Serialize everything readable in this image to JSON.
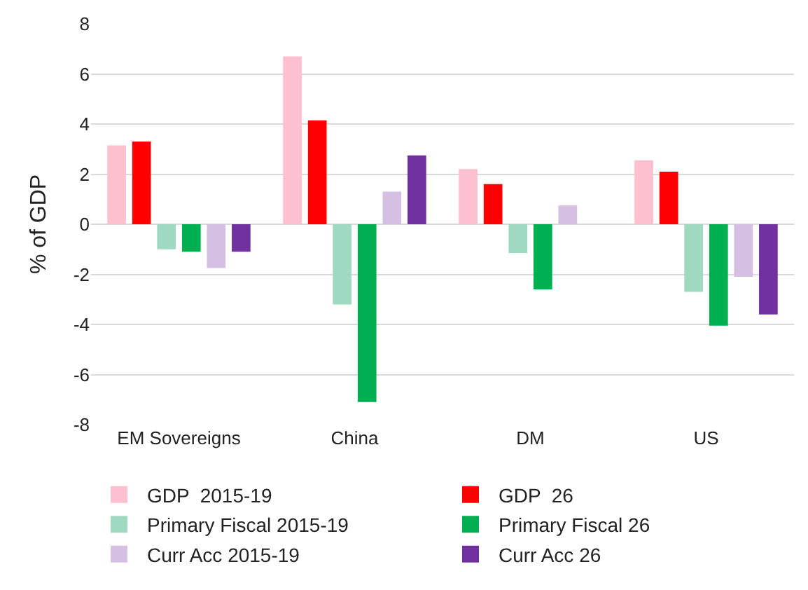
{
  "chart_data": {
    "type": "bar",
    "ylabel": "% of GDP",
    "categories": [
      "EM Sovereigns",
      "China",
      "DM",
      "US"
    ],
    "series": [
      {
        "name": "GDP  2015-19",
        "color": "#fcc0cf",
        "values": [
          3.15,
          6.7,
          2.2,
          2.55
        ]
      },
      {
        "name": "GDP  26",
        "color": "#ff0000",
        "values": [
          3.3,
          4.15,
          1.6,
          2.1
        ]
      },
      {
        "name": "Primary Fiscal 2015-19",
        "color": "#9fd9c0",
        "values": [
          -1.0,
          -3.2,
          -1.15,
          -2.7
        ]
      },
      {
        "name": "Primary Fiscal 26",
        "color": "#00b050",
        "values": [
          -1.1,
          -7.1,
          -2.6,
          -4.05
        ]
      },
      {
        "name": "Curr Acc 2015-19",
        "color": "#d5c0e4",
        "values": [
          -1.75,
          1.3,
          0.75,
          -2.1
        ]
      },
      {
        "name": "Curr Acc 26",
        "color": "#7030a0",
        "values": [
          -1.1,
          2.75,
          null,
          -3.6
        ]
      }
    ],
    "ylim": [
      -8,
      8
    ],
    "yticks": [
      -8,
      -6,
      -4,
      -2,
      0,
      2,
      4,
      6,
      8
    ],
    "grid": "y",
    "legend": "bottom"
  }
}
